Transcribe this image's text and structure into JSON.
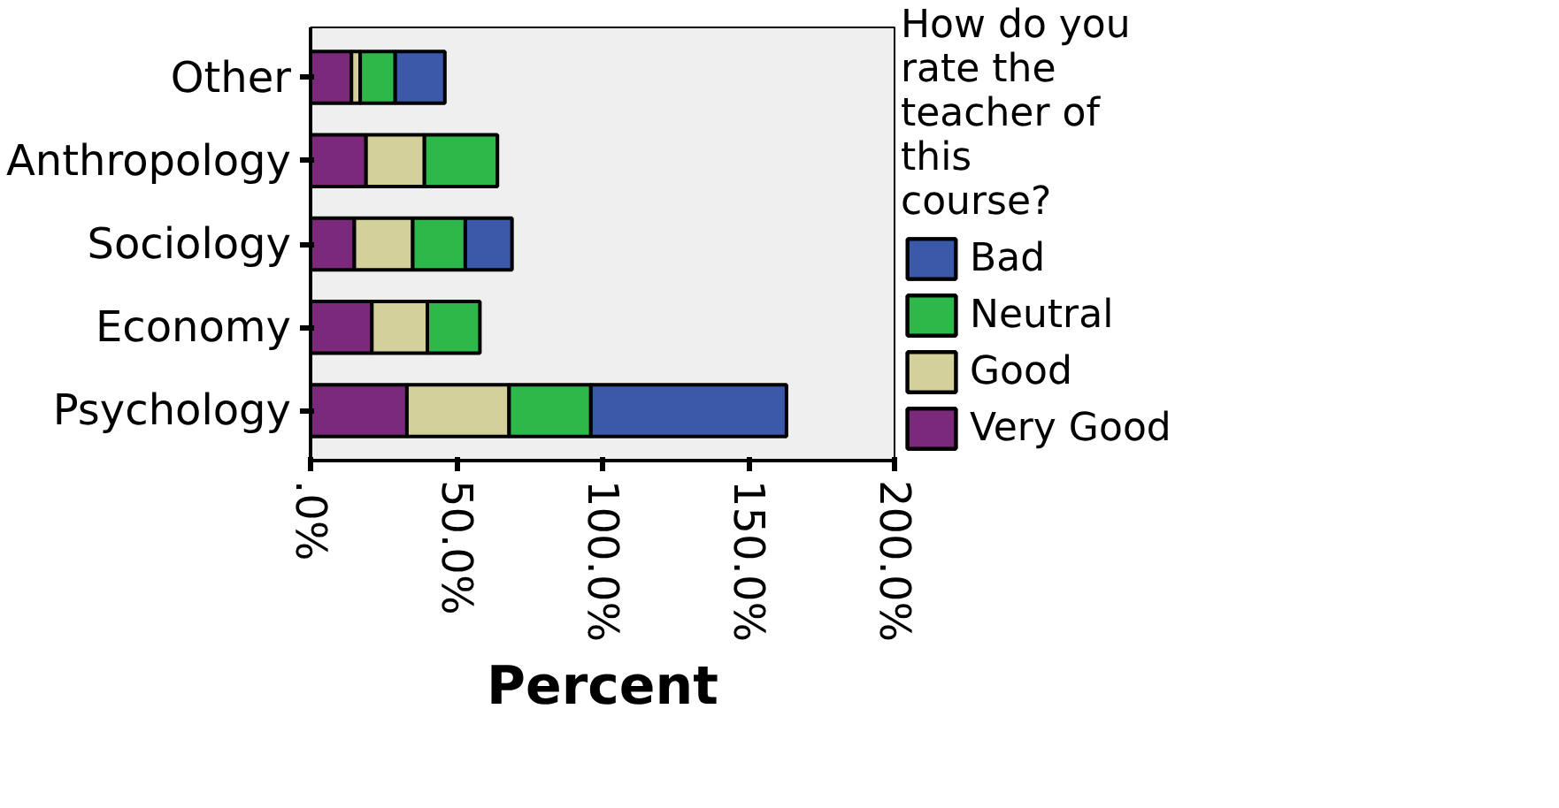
{
  "chart_data": {
    "type": "bar",
    "orientation": "horizontal",
    "stacked": true,
    "xlabel": "Percent",
    "legend_title": "How do you rate the teacher of this course?",
    "legend": "right",
    "grid": false,
    "categories": [
      "Other",
      "Anthropology",
      "Sociology",
      "Economy",
      "Psychology"
    ],
    "xlim": [
      0,
      200
    ],
    "xticks": [
      {
        "value": 0,
        "label": ".0%"
      },
      {
        "value": 50,
        "label": "50.0%"
      },
      {
        "value": 100,
        "label": "100.0%"
      },
      {
        "value": 150,
        "label": "150.0%"
      },
      {
        "value": 200,
        "label": "200.0%"
      }
    ],
    "series": [
      {
        "name": "Very Good",
        "color": "#7b2a7b",
        "values": [
          14,
          19,
          15,
          21,
          33
        ]
      },
      {
        "name": "Good",
        "color": "#d4d09a",
        "values": [
          3,
          20,
          20,
          19,
          35
        ]
      },
      {
        "name": "Neutral",
        "color": "#2eb84a",
        "values": [
          12,
          25,
          18,
          18,
          28
        ]
      },
      {
        "name": "Bad",
        "color": "#3c58a8",
        "values": [
          17,
          null,
          16,
          null,
          67
        ]
      }
    ]
  }
}
